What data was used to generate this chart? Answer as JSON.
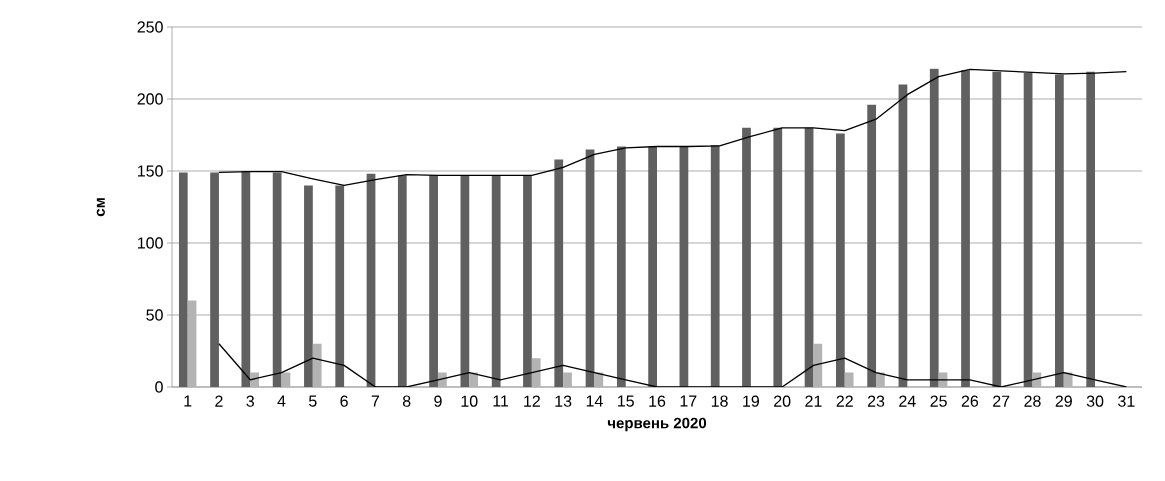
{
  "chart_data": {
    "type": "bar",
    "xlabel": "червень 2020",
    "ylabel": "см",
    "categories": [
      "1",
      "2",
      "3",
      "4",
      "5",
      "6",
      "7",
      "8",
      "9",
      "10",
      "11",
      "12",
      "13",
      "14",
      "15",
      "16",
      "17",
      "18",
      "19",
      "20",
      "21",
      "22",
      "23",
      "24",
      "25",
      "26",
      "27",
      "28",
      "29",
      "30",
      "31"
    ],
    "series": [
      {
        "color": "#606060",
        "values": [
          149,
          149,
          150,
          149,
          140,
          140,
          148,
          147,
          147,
          147,
          147,
          147,
          158,
          165,
          167,
          167,
          167,
          168,
          180,
          180,
          180,
          176,
          196,
          210,
          221,
          220,
          219,
          218,
          217,
          219,
          null
        ]
      },
      {
        "color": "#b3b3b3",
        "values": [
          60,
          0,
          10,
          10,
          30,
          0,
          0,
          0,
          10,
          10,
          0,
          20,
          10,
          10,
          0,
          0,
          0,
          0,
          0,
          0,
          30,
          10,
          10,
          0,
          10,
          0,
          0,
          10,
          10,
          0,
          null
        ]
      },
      {
        "type": "line",
        "color": "#000000",
        "values": [
          null,
          149,
          149.5,
          149.5,
          144.5,
          140,
          144,
          147.5,
          147,
          147,
          147,
          147,
          152.5,
          161.5,
          166,
          167,
          167,
          167.5,
          174,
          180,
          180,
          178,
          186,
          203,
          215.5,
          220.5,
          219.5,
          218.5,
          217.5,
          218,
          219
        ]
      },
      {
        "type": "line",
        "color": "#000000",
        "values": [
          null,
          30,
          5,
          10,
          20,
          15,
          0,
          0,
          5,
          10,
          5,
          10,
          15,
          10,
          5,
          0,
          0,
          0,
          0,
          0,
          15,
          20,
          10,
          5,
          5,
          5,
          0,
          5,
          10,
          5,
          0
        ]
      }
    ],
    "ylim": [
      0,
      250
    ],
    "yticks": [
      0,
      50,
      100,
      150,
      200,
      250
    ],
    "grid": "y"
  }
}
